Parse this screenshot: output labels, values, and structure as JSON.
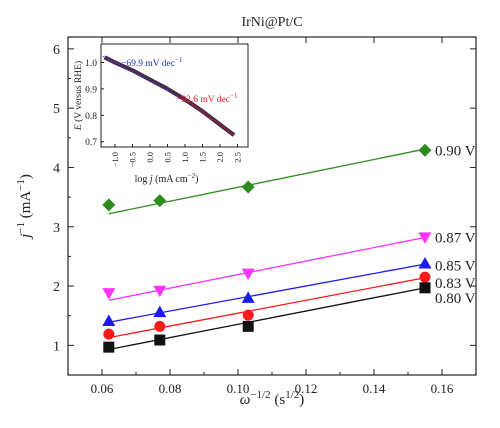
{
  "chart_data": [
    {
      "type": "scatter",
      "title": "IrNi@Pt/C",
      "xlabel": "ω−1/2 (s1/2)",
      "ylabel": "j−1 (mA−1)",
      "xlim": [
        0.05,
        0.17
      ],
      "ylim": [
        0.5,
        6.2
      ],
      "xticks": [
        "0.06",
        "0.08",
        "0.10",
        "0.12",
        "0.14",
        "0.16"
      ],
      "yticks": [
        "1",
        "2",
        "3",
        "4",
        "5",
        "6"
      ],
      "grid": false,
      "legend": "none",
      "series": [
        {
          "name": "0.90 V",
          "color": "#2e8b1e",
          "marker": "diamond",
          "x": [
            0.062,
            0.077,
            0.103,
            0.155
          ],
          "y": [
            3.37,
            3.44,
            3.67,
            4.29
          ],
          "fit": [
            3.22,
            4.31
          ]
        },
        {
          "name": "0.87 V",
          "color": "#ff33ff",
          "marker": "triangle-down",
          "x": [
            0.062,
            0.077,
            0.103,
            0.155
          ],
          "y": [
            1.88,
            1.92,
            2.21,
            2.82
          ],
          "fit": [
            1.76,
            2.82
          ]
        },
        {
          "name": "0.85 V",
          "color": "#1a1aee",
          "marker": "triangle-up",
          "x": [
            0.062,
            0.077,
            0.103,
            0.155
          ],
          "y": [
            1.41,
            1.56,
            1.8,
            2.38
          ],
          "fit": [
            1.39,
            2.37
          ]
        },
        {
          "name": "0.83 V",
          "color": "#ff1a1a",
          "marker": "circle",
          "x": [
            0.062,
            0.077,
            0.103,
            0.155
          ],
          "y": [
            1.19,
            1.32,
            1.51,
            2.15
          ],
          "fit": [
            1.13,
            2.14
          ]
        },
        {
          "name": "0.80 V",
          "color": "#111111",
          "marker": "square",
          "x": [
            0.062,
            0.077,
            0.103,
            0.155
          ],
          "y": [
            0.97,
            1.09,
            1.32,
            1.97
          ],
          "fit": [
            0.93,
            1.97
          ]
        }
      ]
    },
    {
      "type": "line",
      "xlabel": "log j (mA cm−2)",
      "ylabel": "E (V versus RHE)",
      "xlim": [
        -1.4,
        2.8
      ],
      "ylim": [
        0.68,
        1.07
      ],
      "xticks": [
        "−1.0",
        "−0.5",
        "0.0",
        "0.5",
        "1.0",
        "1.5",
        "2.0",
        "2.5"
      ],
      "yticks": [
        "0.7",
        "0.8",
        "0.9",
        "1.0"
      ],
      "annotations": [
        "−69.9 mV dec−1",
        "−92.6 mV dec−1"
      ],
      "series": [
        {
          "x": [
            -1.3,
            -1.0,
            -0.5,
            0.0,
            0.5,
            1.0,
            1.5,
            2.0,
            2.4
          ],
          "y": [
            1.02,
            1.0,
            0.97,
            0.935,
            0.9,
            0.86,
            0.815,
            0.765,
            0.725
          ]
        }
      ]
    }
  ]
}
